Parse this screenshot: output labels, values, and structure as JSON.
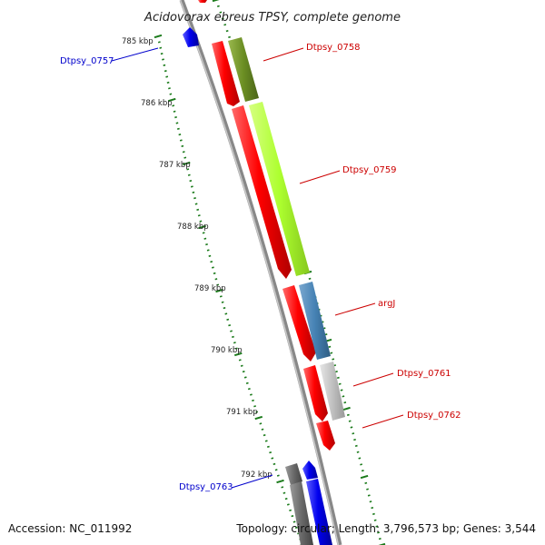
{
  "title": "Acidovorax ebreus TPSY, complete genome",
  "footer": {
    "accession": "Accession: NC_011992",
    "summary": "Topology: circular; Length: 3,796,573 bp; Genes: 3,544"
  },
  "ticks": {
    "unit": "kbp",
    "labels": [
      "785 kbp",
      "786 kbp",
      "787 kbp",
      "788 kbp",
      "789 kbp",
      "790 kbp",
      "791 kbp",
      "792 kbp"
    ]
  },
  "genes": [
    {
      "name": "Dtpsy_0757",
      "strand": "reverse",
      "color": "#1010e0"
    },
    {
      "name": "Dtpsy_0758",
      "strand": "forward",
      "color": "#e00000"
    },
    {
      "name": "Dtpsy_0759",
      "strand": "forward",
      "color": "#e00000"
    },
    {
      "name": "argJ",
      "strand": "forward",
      "color": "#e00000"
    },
    {
      "name": "Dtpsy_0761",
      "strand": "forward",
      "color": "#e00000"
    },
    {
      "name": "Dtpsy_0762",
      "strand": "forward",
      "color": "#e00000"
    },
    {
      "name": "Dtpsy_0763",
      "strand": "reverse",
      "color": "#1010e0"
    }
  ],
  "colors": {
    "forward_gene": "#ff0000",
    "reverse_gene": "#0000ee",
    "backbone": "#888888",
    "tick": "#1a7a1a",
    "cog_dark_olive": "#6b8e23",
    "cog_light_green": "#adff2f",
    "cog_steel_blue": "#4682b4",
    "cog_light_gray": "#c0c0c0",
    "cog_dark_gray": "#696969"
  }
}
